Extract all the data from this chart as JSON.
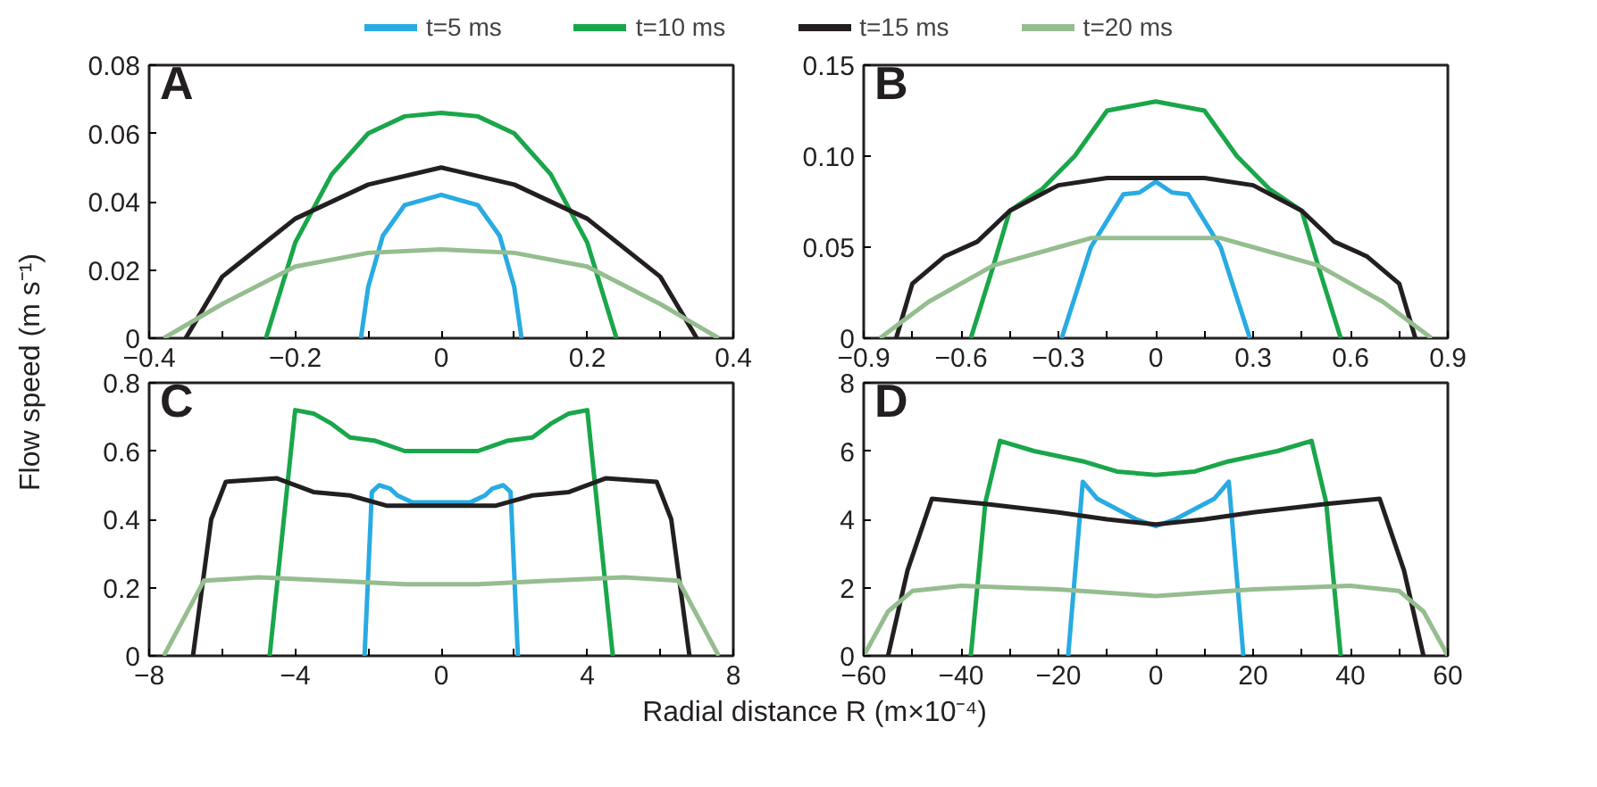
{
  "chart_data": [
    {
      "type": "line",
      "title": "A",
      "ylabel": "Flow speed (m s⁻¹)",
      "legend": "top",
      "xlim": [
        -0.4,
        0.4
      ],
      "ylim": [
        0,
        0.08
      ],
      "xticks": [
        {
          "value": -0.4,
          "label": "−0.4"
        },
        {
          "value": -0.3,
          "label": null
        },
        {
          "value": -0.2,
          "label": "−0.2"
        },
        {
          "value": -0.1,
          "label": null
        },
        0,
        {
          "value": 0.1,
          "label": null
        },
        0.2,
        {
          "value": 0.3,
          "label": null
        },
        0.4
      ],
      "yticks": [
        0,
        0.02,
        0.04,
        0.06,
        0.08
      ],
      "series": [
        {
          "name": "t=5 ms",
          "color": "#29abe2",
          "x": [
            -0.11,
            -0.1,
            -0.08,
            -0.05,
            0,
            0.05,
            0.08,
            0.1,
            0.11
          ],
          "values": [
            0,
            0.015,
            0.03,
            0.039,
            0.042,
            0.039,
            0.03,
            0.015,
            0
          ]
        },
        {
          "name": "t=10 ms",
          "color": "#1aa64a",
          "x": [
            -0.24,
            -0.2,
            -0.15,
            -0.1,
            -0.05,
            0,
            0.05,
            0.1,
            0.15,
            0.2,
            0.24
          ],
          "values": [
            0,
            0.028,
            0.048,
            0.06,
            0.065,
            0.066,
            0.065,
            0.06,
            0.048,
            0.028,
            0
          ]
        },
        {
          "name": "t=15 ms",
          "color": "#231f20",
          "x": [
            -0.35,
            -0.3,
            -0.2,
            -0.1,
            0,
            0.1,
            0.2,
            0.3,
            0.35
          ],
          "values": [
            0,
            0.018,
            0.035,
            0.045,
            0.05,
            0.045,
            0.035,
            0.018,
            0
          ]
        },
        {
          "name": "t=20 ms",
          "color": "#95bd8f",
          "x": [
            -0.38,
            -0.3,
            -0.2,
            -0.1,
            0,
            0.1,
            0.2,
            0.3,
            0.38
          ],
          "values": [
            0,
            0.01,
            0.021,
            0.025,
            0.026,
            0.025,
            0.021,
            0.01,
            0
          ]
        }
      ]
    },
    {
      "type": "line",
      "title": "B",
      "xlim": [
        -0.9,
        0.9
      ],
      "ylim": [
        0,
        0.15
      ],
      "xticks": [
        {
          "value": -0.9,
          "label": "−0.9"
        },
        {
          "value": -0.75,
          "label": null
        },
        {
          "value": -0.6,
          "label": "−0.6"
        },
        {
          "value": -0.45,
          "label": null
        },
        {
          "value": -0.3,
          "label": "−0.3"
        },
        {
          "value": -0.15,
          "label": null
        },
        0,
        {
          "value": 0.15,
          "label": null
        },
        0.3,
        {
          "value": 0.45,
          "label": null
        },
        0.6,
        {
          "value": 0.75,
          "label": null
        },
        0.9
      ],
      "yticks": [
        0,
        0.05,
        {
          "value": 0.1,
          "label": "0.10"
        },
        0.15
      ],
      "series": [
        {
          "color": "#29abe2",
          "x": [
            -0.29,
            -0.2,
            -0.1,
            -0.05,
            0,
            0.05,
            0.1,
            0.2,
            0.29
          ],
          "values": [
            0,
            0.05,
            0.079,
            0.08,
            0.086,
            0.08,
            0.079,
            0.05,
            0
          ]
        },
        {
          "color": "#1aa64a",
          "x": [
            -0.57,
            -0.5,
            -0.45,
            -0.35,
            -0.25,
            -0.15,
            0,
            0.15,
            0.25,
            0.35,
            0.45,
            0.5,
            0.57
          ],
          "values": [
            0,
            0.04,
            0.07,
            0.082,
            0.1,
            0.125,
            0.13,
            0.125,
            0.1,
            0.082,
            0.07,
            0.04,
            0
          ]
        },
        {
          "color": "#231f20",
          "x": [
            -0.8,
            -0.75,
            -0.65,
            -0.55,
            -0.45,
            -0.3,
            -0.15,
            0,
            0.15,
            0.3,
            0.45,
            0.55,
            0.65,
            0.75,
            0.8
          ],
          "values": [
            0,
            0.03,
            0.045,
            0.053,
            0.07,
            0.084,
            0.088,
            0.088,
            0.088,
            0.084,
            0.07,
            0.053,
            0.045,
            0.03,
            0
          ]
        },
        {
          "color": "#95bd8f",
          "x": [
            -0.85,
            -0.7,
            -0.5,
            -0.3,
            -0.2,
            0,
            0.2,
            0.3,
            0.5,
            0.7,
            0.85
          ],
          "values": [
            0,
            0.02,
            0.04,
            0.05,
            0.055,
            0.055,
            0.055,
            0.05,
            0.04,
            0.02,
            0
          ]
        }
      ]
    },
    {
      "type": "line",
      "title": "C",
      "xlabel": "Radial distance R (m×10⁻⁴)",
      "xlim": [
        -8,
        8
      ],
      "ylim": [
        0,
        0.8
      ],
      "xticks": [
        {
          "value": -8,
          "label": "−8"
        },
        {
          "value": -6,
          "label": null
        },
        {
          "value": -4,
          "label": "−4"
        },
        {
          "value": -2,
          "label": null
        },
        0,
        {
          "value": 2,
          "label": null
        },
        4,
        {
          "value": 6,
          "label": null
        },
        8
      ],
      "yticks": [
        0,
        0.2,
        0.4,
        0.6,
        0.8
      ],
      "series": [
        {
          "color": "#29abe2",
          "x": [
            -2.1,
            -1.9,
            -1.7,
            -1.4,
            -1.2,
            -0.8,
            0,
            0.8,
            1.2,
            1.4,
            1.7,
            1.9,
            2.1
          ],
          "values": [
            0,
            0.48,
            0.5,
            0.49,
            0.47,
            0.45,
            0.45,
            0.45,
            0.47,
            0.49,
            0.5,
            0.48,
            0
          ]
        },
        {
          "color": "#1aa64a",
          "x": [
            -4.7,
            -4,
            -3.5,
            -3,
            -2.5,
            -1.8,
            -1,
            0,
            1,
            1.8,
            2.5,
            3,
            3.5,
            4,
            4.7
          ],
          "values": [
            0,
            0.72,
            0.71,
            0.68,
            0.64,
            0.63,
            0.6,
            0.6,
            0.6,
            0.63,
            0.64,
            0.68,
            0.71,
            0.72,
            0
          ]
        },
        {
          "color": "#231f20",
          "x": [
            -6.8,
            -6.3,
            -5.9,
            -4.5,
            -3.5,
            -2.5,
            -1.5,
            0,
            1.5,
            2.5,
            3.5,
            4.5,
            5.9,
            6.3,
            6.8
          ],
          "values": [
            0,
            0.4,
            0.51,
            0.52,
            0.48,
            0.47,
            0.44,
            0.44,
            0.44,
            0.47,
            0.48,
            0.52,
            0.51,
            0.4,
            0
          ]
        },
        {
          "color": "#95bd8f",
          "x": [
            -7.6,
            -7,
            -6.5,
            -5,
            -3,
            -1,
            0,
            1,
            3,
            5,
            6.5,
            7,
            7.6
          ],
          "values": [
            0,
            0.12,
            0.22,
            0.23,
            0.22,
            0.21,
            0.21,
            0.21,
            0.22,
            0.23,
            0.22,
            0.12,
            0
          ]
        }
      ]
    },
    {
      "type": "line",
      "title": "D",
      "xlim": [
        -60,
        60
      ],
      "ylim": [
        0,
        8
      ],
      "xticks": [
        {
          "value": -60,
          "label": "−60"
        },
        {
          "value": -50,
          "label": null
        },
        {
          "value": -40,
          "label": "−40"
        },
        {
          "value": -30,
          "label": null
        },
        {
          "value": -20,
          "label": "−20"
        },
        {
          "value": -10,
          "label": null
        },
        0,
        {
          "value": 10,
          "label": null
        },
        20,
        {
          "value": 30,
          "label": null
        },
        40,
        {
          "value": 50,
          "label": null
        },
        60
      ],
      "yticks": [
        0,
        2,
        4,
        6,
        8
      ],
      "series": [
        {
          "color": "#29abe2",
          "x": [
            -18,
            -15,
            -12,
            -8,
            -4,
            0,
            4,
            8,
            12,
            15,
            18
          ],
          "values": [
            0,
            5.1,
            4.6,
            4.3,
            4.0,
            3.8,
            4.0,
            4.3,
            4.6,
            5.1,
            0
          ]
        },
        {
          "color": "#1aa64a",
          "x": [
            -38,
            -35,
            -32,
            -25,
            -15,
            -8,
            0,
            8,
            15,
            25,
            32,
            35,
            38
          ],
          "values": [
            0,
            4.5,
            6.3,
            6.0,
            5.7,
            5.4,
            5.3,
            5.4,
            5.7,
            6.0,
            6.3,
            4.5,
            0
          ]
        },
        {
          "color": "#231f20",
          "x": [
            -55,
            -51,
            -46,
            -35,
            -20,
            -10,
            0,
            10,
            20,
            35,
            46,
            51,
            55
          ],
          "values": [
            0,
            2.5,
            4.6,
            4.45,
            4.2,
            4.0,
            3.85,
            4.0,
            4.2,
            4.45,
            4.6,
            2.5,
            0
          ]
        },
        {
          "color": "#95bd8f",
          "x": [
            -60,
            -55,
            -50,
            -40,
            -20,
            0,
            20,
            40,
            50,
            55,
            60
          ],
          "values": [
            0,
            1.3,
            1.9,
            2.05,
            1.95,
            1.75,
            1.95,
            2.05,
            1.9,
            1.3,
            0
          ]
        }
      ]
    }
  ]
}
